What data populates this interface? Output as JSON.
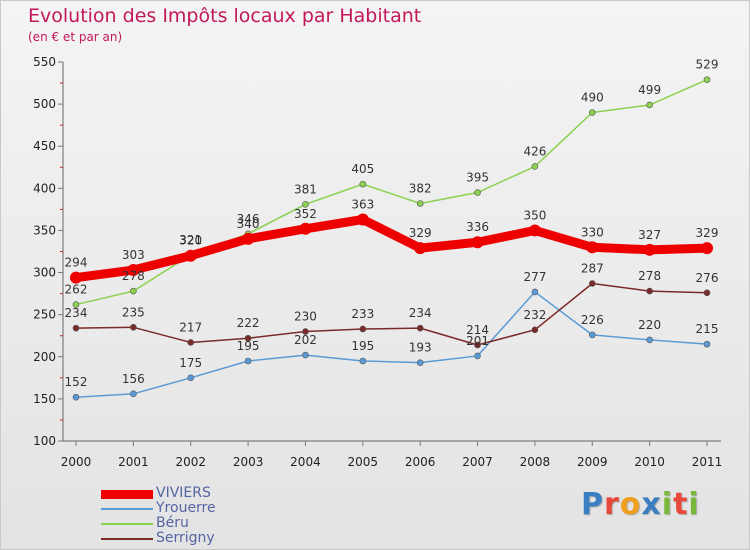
{
  "header": {
    "title": "Evolution des Impôts locaux par Habitant",
    "subtitle": "(en € et par an)"
  },
  "logo": {
    "text": "Proxiti",
    "colors": [
      "#3a7fc1",
      "#e8473a",
      "#f0a020",
      "#3a7fc1",
      "#7ab83a",
      "#e8473a",
      "#7ab83a"
    ]
  },
  "chart_data": {
    "type": "line",
    "x": [
      "2000",
      "2001",
      "2002",
      "2003",
      "2004",
      "2005",
      "2006",
      "2007",
      "2008",
      "2009",
      "2010",
      "2011"
    ],
    "ylim": [
      100,
      550
    ],
    "yticks": [
      "100",
      "150",
      "200",
      "250",
      "300",
      "350",
      "400",
      "450",
      "500",
      "550"
    ],
    "grid": false,
    "legend": "bottom-left",
    "series": [
      {
        "name": "Yrouerre",
        "color": "#5b9bd5",
        "values": [
          152,
          156,
          175,
          195,
          202,
          195,
          193,
          201,
          277,
          226,
          220,
          215
        ],
        "labels": [
          "152",
          "156",
          "175",
          "195",
          "202",
          "195",
          "193",
          "201",
          "277",
          "226",
          "220",
          "215"
        ]
      },
      {
        "name": "Béru",
        "color": "#8bd14f",
        "values": [
          262,
          278,
          321,
          346,
          381,
          405,
          382,
          395,
          426,
          490,
          499,
          529
        ],
        "labels": [
          "262",
          "278",
          "321",
          "346",
          "381",
          "405",
          "382",
          "395",
          "426",
          "490",
          "499",
          "529"
        ]
      },
      {
        "name": "Serrigny",
        "color": "#7b2a2a",
        "values": [
          234,
          235,
          217,
          222,
          230,
          233,
          234,
          214,
          232,
          287,
          278,
          276
        ],
        "labels": [
          "234",
          "235",
          "217",
          "222",
          "230",
          "233",
          "234",
          "214",
          "232",
          "287",
          "278",
          "276"
        ]
      },
      {
        "name": "VIVIERS",
        "color": "#ee0000",
        "values": [
          294,
          303,
          320,
          340,
          352,
          363,
          329,
          336,
          350,
          330,
          327,
          329
        ],
        "labels": [
          "294",
          "303",
          "320",
          "340",
          "352",
          "363",
          "329",
          "336",
          "350",
          "330",
          "327",
          "329"
        ]
      }
    ],
    "legend_order": [
      "VIVIERS",
      "Yrouerre",
      "Béru",
      "Serrigny"
    ]
  }
}
